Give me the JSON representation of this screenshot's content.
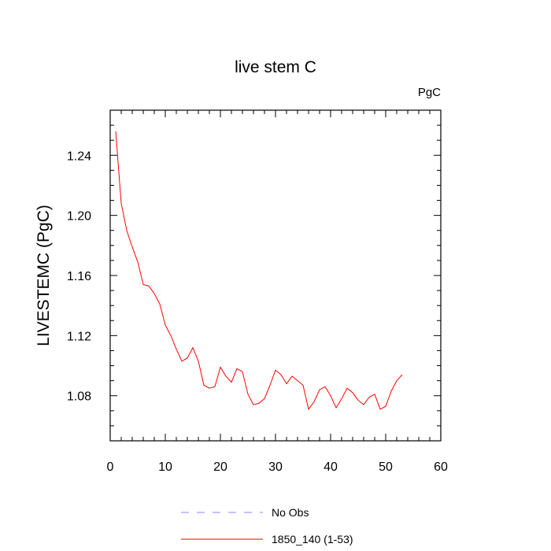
{
  "chart_data": {
    "type": "line",
    "title": "live stem C",
    "units_label": "PgC",
    "ylabel": "LIVESTEMC  (PgC)",
    "xlabel": "",
    "xlim": [
      0,
      60
    ],
    "ylim": [
      1.05,
      1.27
    ],
    "x_ticks": [
      0,
      10,
      20,
      30,
      40,
      50,
      60
    ],
    "y_ticks": [
      1.08,
      1.12,
      1.16,
      1.2,
      1.24
    ],
    "y_tick_labels": [
      "1.08",
      "1.12",
      "1.16",
      "1.20",
      "1.24"
    ],
    "x_tick_labels": [
      "0",
      "10",
      "20",
      "30",
      "40",
      "50",
      "60"
    ],
    "grid": false,
    "legend_position": "bottom",
    "series": [
      {
        "name": "1850_140 (1-53)",
        "color": "#ff0000",
        "dash": "solid",
        "x": [
          1,
          2,
          3,
          4,
          5,
          6,
          7,
          8,
          9,
          10,
          11,
          12,
          13,
          14,
          15,
          16,
          17,
          18,
          19,
          20,
          21,
          22,
          23,
          24,
          25,
          26,
          27,
          28,
          29,
          30,
          31,
          32,
          33,
          34,
          35,
          36,
          37,
          38,
          39,
          40,
          41,
          42,
          43,
          44,
          45,
          46,
          47,
          48,
          49,
          50,
          51,
          52,
          53
        ],
        "values": [
          1.256,
          1.208,
          1.19,
          1.179,
          1.169,
          1.154,
          1.153,
          1.148,
          1.141,
          1.127,
          1.12,
          1.111,
          1.103,
          1.105,
          1.112,
          1.103,
          1.087,
          1.085,
          1.086,
          1.099,
          1.093,
          1.089,
          1.098,
          1.096,
          1.081,
          1.074,
          1.075,
          1.078,
          1.087,
          1.097,
          1.094,
          1.088,
          1.093,
          1.09,
          1.087,
          1.071,
          1.076,
          1.084,
          1.086,
          1.08,
          1.072,
          1.078,
          1.085,
          1.082,
          1.077,
          1.074,
          1.079,
          1.081,
          1.071,
          1.073,
          1.083,
          1.09,
          1.094
        ]
      },
      {
        "name": "No Obs",
        "color": "#8a8aff",
        "dash": "dashed",
        "x": [],
        "values": []
      }
    ]
  }
}
